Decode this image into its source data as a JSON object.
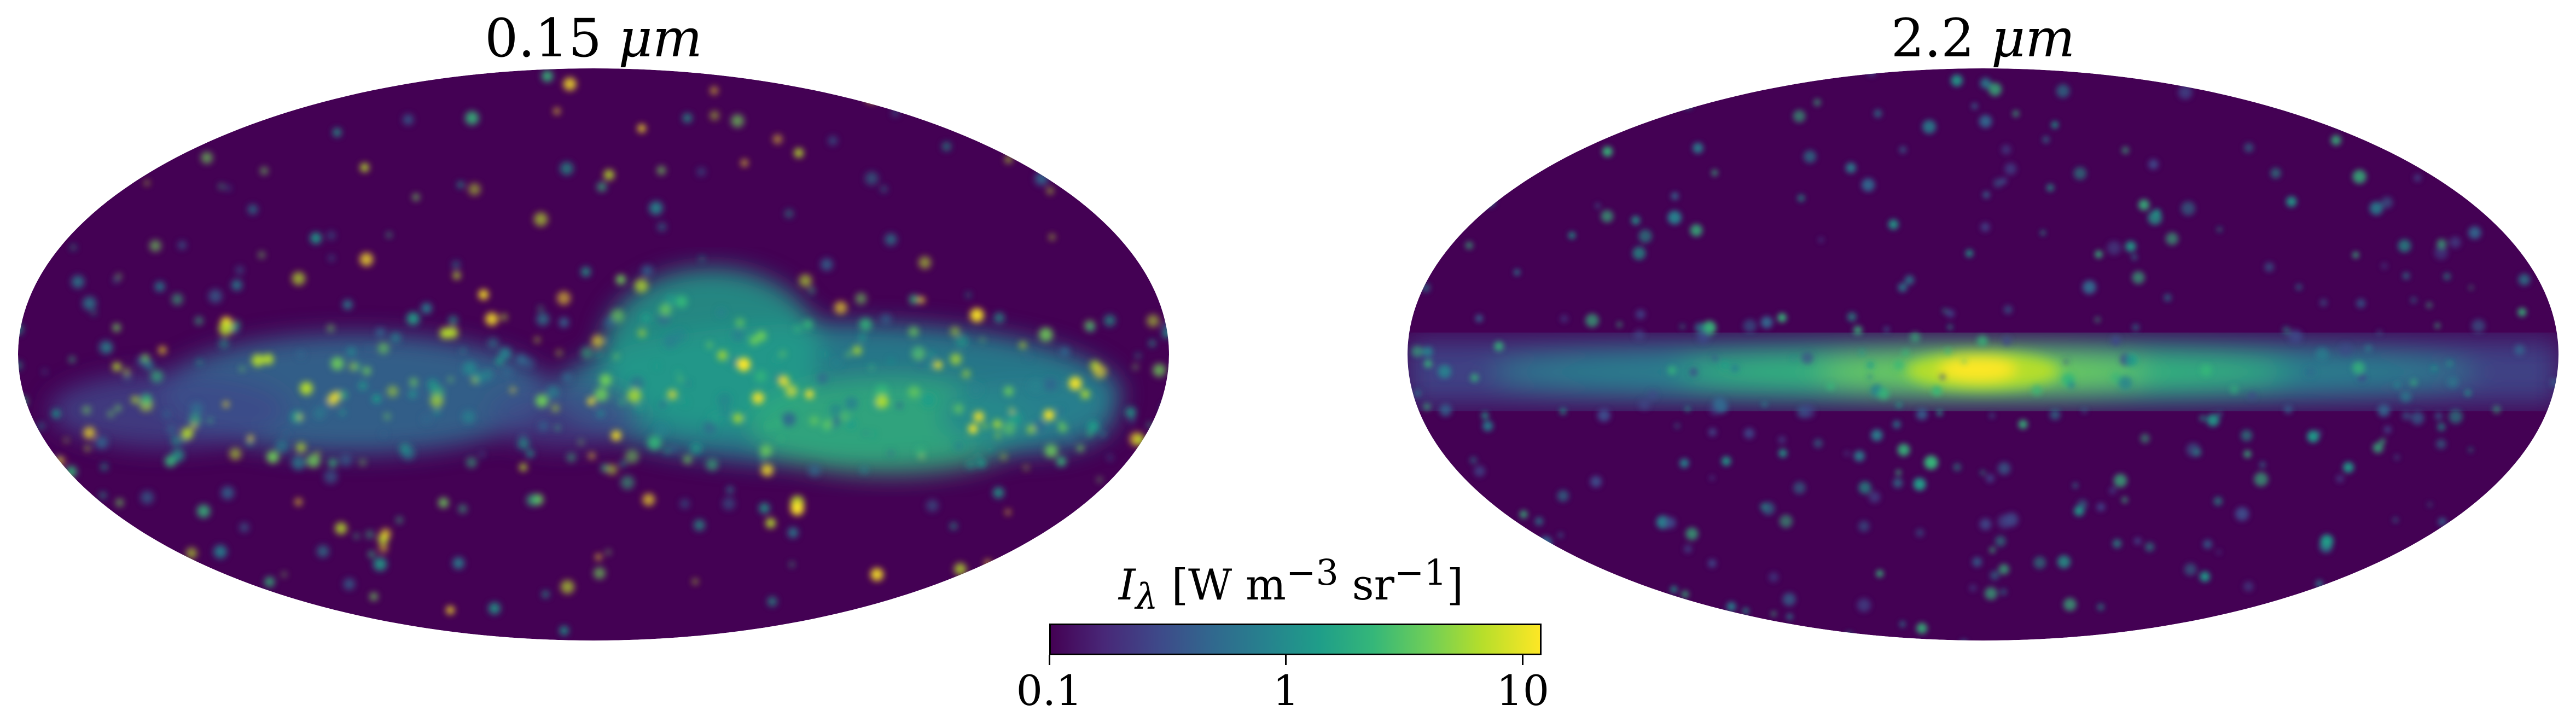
{
  "chart_data": [
    {
      "type": "heatmap",
      "projection": "mollweide",
      "title_value": "0.15",
      "title_unit": "μm",
      "features": [
        "patchy diffuse emission along the galactic plane",
        "many bright compact sources"
      ],
      "colormap": "viridis",
      "grid": false
    },
    {
      "type": "heatmap",
      "projection": "mollweide",
      "title_value": "2.2",
      "title_unit": "μm",
      "features": [
        "smooth bright galactic disk",
        "bright central bulge",
        "faint point sources"
      ],
      "colormap": "viridis",
      "grid": false
    }
  ],
  "colorbar": {
    "label_symbol": "I",
    "label_subscript": "λ",
    "label_units_open": " [W m",
    "label_exp1": "−3",
    "label_mid": " sr",
    "label_exp2": "−1",
    "label_units_close": "]",
    "scale": "log",
    "range": [
      0.1,
      12
    ],
    "ticks": [
      {
        "value": 0.1,
        "label": "0.1"
      },
      {
        "value": 1,
        "label": "1"
      },
      {
        "value": 10,
        "label": "10"
      }
    ],
    "colors": [
      "#440154",
      "#482878",
      "#3e4989",
      "#31688e",
      "#26828e",
      "#1f9e89",
      "#35b779",
      "#6ece58",
      "#b5de2b",
      "#fde725"
    ]
  }
}
